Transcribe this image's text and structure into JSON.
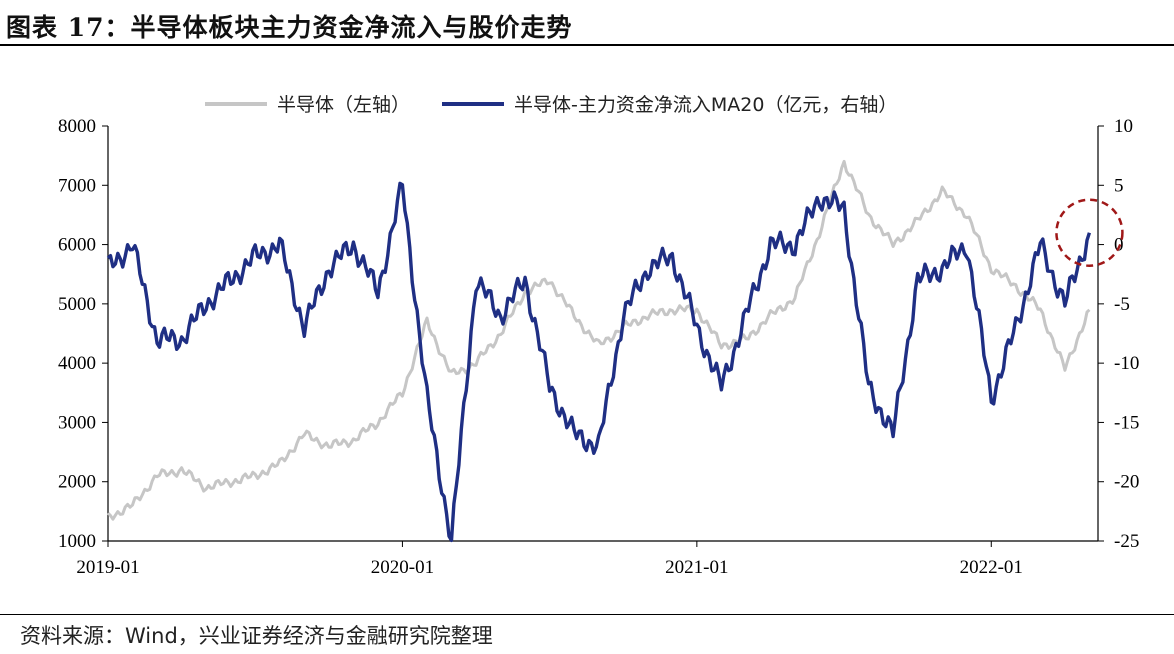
{
  "header": {
    "title": "图表 17：半导体板块主力资金净流入与股价走势"
  },
  "footer": {
    "source": "资料来源：Wind，兴业证券经济与金融研究院整理"
  },
  "colors": {
    "series_index": "#c6c6c6",
    "series_flow": "#1f2f84",
    "highlight": "#a01818"
  },
  "chart_data": {
    "type": "line",
    "grid": false,
    "legend_position": "top",
    "x_axis": {
      "ticks": [
        "2019-01",
        "2020-01",
        "2021-01",
        "2022-01"
      ],
      "range": [
        "2019-01",
        "2022-05"
      ]
    },
    "y_left": {
      "range": [
        1000,
        8000
      ],
      "ticks": [
        1000,
        2000,
        3000,
        4000,
        5000,
        6000,
        7000,
        8000
      ]
    },
    "y_right": {
      "range": [
        -25,
        10
      ],
      "ticks": [
        -25,
        -20,
        -15,
        -10,
        -5,
        0,
        5,
        10
      ]
    },
    "series": [
      {
        "name": "半导体（左轴）",
        "axis": "left",
        "color": "#c6c6c6",
        "points": [
          [
            "2019-01",
            1400
          ],
          [
            "2019-02",
            1600
          ],
          [
            "2019-03",
            2100
          ],
          [
            "2019-04",
            2200
          ],
          [
            "2019-05",
            1900
          ],
          [
            "2019-06",
            2000
          ],
          [
            "2019-07",
            2100
          ],
          [
            "2019-08",
            2300
          ],
          [
            "2019-09",
            2800
          ],
          [
            "2019-10",
            2600
          ],
          [
            "2019-11",
            2700
          ],
          [
            "2019-12",
            3000
          ],
          [
            "2020-01",
            3500
          ],
          [
            "2020-02",
            4700
          ],
          [
            "2020-03",
            3800
          ],
          [
            "2020-04",
            4000
          ],
          [
            "2020-05",
            4500
          ],
          [
            "2020-06",
            5200
          ],
          [
            "2020-07",
            5400
          ],
          [
            "2020-08",
            4800
          ],
          [
            "2020-09",
            4300
          ],
          [
            "2020-10",
            4600
          ],
          [
            "2020-11",
            4800
          ],
          [
            "2020-12",
            4900
          ],
          [
            "2021-01",
            4900
          ],
          [
            "2021-02",
            4300
          ],
          [
            "2021-03",
            4400
          ],
          [
            "2021-04",
            4800
          ],
          [
            "2021-05",
            5100
          ],
          [
            "2021-06",
            6200
          ],
          [
            "2021-07",
            7400
          ],
          [
            "2021-08",
            6500
          ],
          [
            "2021-09",
            6000
          ],
          [
            "2021-10",
            6400
          ],
          [
            "2021-11",
            6900
          ],
          [
            "2021-12",
            6500
          ],
          [
            "2022-01",
            5600
          ],
          [
            "2022-02",
            5300
          ],
          [
            "2022-03",
            4900
          ],
          [
            "2022-04",
            3900
          ],
          [
            "2022-05",
            4900
          ]
        ]
      },
      {
        "name": "半导体-主力资金净流入MA20（亿元，右轴）",
        "axis": "right",
        "color": "#1f2f84",
        "points": [
          [
            "2019-01",
            -2
          ],
          [
            "2019-02",
            0
          ],
          [
            "2019-03",
            -8
          ],
          [
            "2019-04",
            -8
          ],
          [
            "2019-05",
            -5
          ],
          [
            "2019-06",
            -3
          ],
          [
            "2019-07",
            -1
          ],
          [
            "2019-08",
            0
          ],
          [
            "2019-09",
            -7
          ],
          [
            "2019-10",
            -2
          ],
          [
            "2019-11",
            0
          ],
          [
            "2019-12",
            -4
          ],
          [
            "2020-01",
            5
          ],
          [
            "2020-02",
            -13
          ],
          [
            "2020-03",
            -25
          ],
          [
            "2020-04",
            -3
          ],
          [
            "2020-05",
            -6
          ],
          [
            "2020-06",
            -3
          ],
          [
            "2020-07",
            -12
          ],
          [
            "2020-08",
            -16
          ],
          [
            "2020-09",
            -17
          ],
          [
            "2020-10",
            -6
          ],
          [
            "2020-11",
            -2
          ],
          [
            "2020-12",
            -1
          ],
          [
            "2021-01",
            -7
          ],
          [
            "2021-02",
            -12
          ],
          [
            "2021-03",
            -6
          ],
          [
            "2021-04",
            0
          ],
          [
            "2021-05",
            0
          ],
          [
            "2021-06",
            4
          ],
          [
            "2021-07",
            3
          ],
          [
            "2021-08",
            -12
          ],
          [
            "2021-09",
            -16
          ],
          [
            "2021-10",
            -3
          ],
          [
            "2021-11",
            -2
          ],
          [
            "2021-12",
            0
          ],
          [
            "2022-01",
            -13
          ],
          [
            "2022-02",
            -7
          ],
          [
            "2022-03",
            0
          ],
          [
            "2022-04",
            -5
          ],
          [
            "2022-05",
            1
          ]
        ]
      }
    ],
    "annotations": [
      {
        "type": "dashed-circle",
        "at": "2022-05"
      }
    ]
  }
}
